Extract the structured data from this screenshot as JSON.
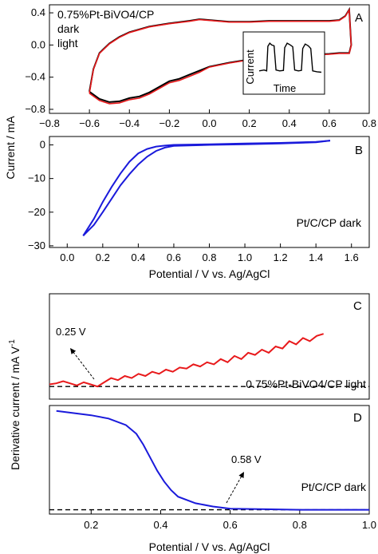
{
  "chart_data": [
    {
      "panel": "A",
      "type": "line",
      "letter": "A",
      "legend_title": "0.75%Pt-BiVO4/CP",
      "series": [
        {
          "name": "dark",
          "color": "#000000"
        },
        {
          "name": "light",
          "color": "#e8191b"
        }
      ],
      "x_ticks": [
        "−0.8",
        "−0.6",
        "−0.4",
        "−0.2",
        "0.0",
        "0.2",
        "0.4",
        "0.6",
        "0.8"
      ],
      "y_ticks": [
        "0.4",
        "0.0",
        "−0.4",
        "−0.8"
      ],
      "xlim": [
        -0.8,
        0.8
      ],
      "ylim": [
        -0.85,
        0.5
      ],
      "cv_upper": [
        [
          -0.6,
          -0.58
        ],
        [
          -0.58,
          -0.3
        ],
        [
          -0.55,
          -0.1
        ],
        [
          -0.5,
          0.02
        ],
        [
          -0.45,
          0.1
        ],
        [
          -0.4,
          0.16
        ],
        [
          -0.3,
          0.23
        ],
        [
          -0.2,
          0.27
        ],
        [
          -0.1,
          0.3
        ],
        [
          -0.05,
          0.32
        ],
        [
          0.0,
          0.31
        ],
        [
          0.1,
          0.29
        ],
        [
          0.2,
          0.29
        ],
        [
          0.3,
          0.3
        ],
        [
          0.4,
          0.3
        ],
        [
          0.5,
          0.3
        ],
        [
          0.6,
          0.3
        ],
        [
          0.65,
          0.31
        ],
        [
          0.68,
          0.36
        ],
        [
          0.7,
          0.44
        ]
      ],
      "cv_lower": [
        [
          0.7,
          0.44
        ],
        [
          0.71,
          0.0
        ],
        [
          0.7,
          -0.1
        ],
        [
          0.65,
          -0.1
        ],
        [
          0.6,
          -0.11
        ],
        [
          0.5,
          -0.12
        ],
        [
          0.4,
          -0.14
        ],
        [
          0.3,
          -0.16
        ],
        [
          0.2,
          -0.18
        ],
        [
          0.1,
          -0.22
        ],
        [
          0.0,
          -0.27
        ],
        [
          -0.05,
          -0.32
        ],
        [
          -0.1,
          -0.37
        ],
        [
          -0.15,
          -0.42
        ],
        [
          -0.2,
          -0.45
        ],
        [
          -0.25,
          -0.52
        ],
        [
          -0.3,
          -0.59
        ],
        [
          -0.35,
          -0.64
        ],
        [
          -0.4,
          -0.66
        ],
        [
          -0.45,
          -0.7
        ],
        [
          -0.5,
          -0.71
        ],
        [
          -0.55,
          -0.67
        ],
        [
          -0.6,
          -0.58
        ]
      ],
      "inset": {
        "xlabel": "Time",
        "ylabel": "Current",
        "trace": [
          [
            0,
            0.2
          ],
          [
            0.08,
            0.22
          ],
          [
            0.12,
            0.2
          ],
          [
            0.14,
            0.75
          ],
          [
            0.17,
            0.82
          ],
          [
            0.2,
            0.78
          ],
          [
            0.24,
            0.76
          ],
          [
            0.27,
            0.22
          ],
          [
            0.33,
            0.2
          ],
          [
            0.39,
            0.21
          ],
          [
            0.41,
            0.72
          ],
          [
            0.45,
            0.82
          ],
          [
            0.5,
            0.78
          ],
          [
            0.54,
            0.74
          ],
          [
            0.57,
            0.22
          ],
          [
            0.63,
            0.2
          ],
          [
            0.68,
            0.21
          ],
          [
            0.7,
            0.7
          ],
          [
            0.74,
            0.8
          ],
          [
            0.79,
            0.76
          ],
          [
            0.83,
            0.7
          ],
          [
            0.86,
            0.2
          ],
          [
            0.93,
            0.18
          ],
          [
            1.0,
            0.17
          ]
        ]
      }
    },
    {
      "panel": "B",
      "type": "line",
      "letter": "B",
      "series": [
        {
          "name": "Pt/C/CP dark",
          "color": "#1a1adb"
        }
      ],
      "x_ticks": [
        "0.0",
        "0.2",
        "0.4",
        "0.6",
        "0.8",
        "1.0",
        "1.2",
        "1.4",
        "1.6"
      ],
      "y_ticks": [
        "0",
        "−10",
        "−20",
        "−30"
      ],
      "xlabel": "Potential / V vs. Ag/AgCl",
      "xlim": [
        -0.1,
        1.7
      ],
      "ylim": [
        -30.5,
        2.5
      ],
      "scan_forward": [
        [
          0.09,
          -27
        ],
        [
          0.15,
          -22
        ],
        [
          0.2,
          -17
        ],
        [
          0.25,
          -12.5
        ],
        [
          0.3,
          -8.5
        ],
        [
          0.35,
          -5
        ],
        [
          0.4,
          -2.5
        ],
        [
          0.45,
          -1.2
        ],
        [
          0.5,
          -0.5
        ],
        [
          0.55,
          -0.2
        ],
        [
          0.6,
          0
        ],
        [
          0.8,
          0.2
        ],
        [
          1.0,
          0.4
        ],
        [
          1.2,
          0.6
        ],
        [
          1.4,
          0.9
        ],
        [
          1.48,
          1.3
        ]
      ],
      "scan_backward": [
        [
          1.48,
          1.3
        ],
        [
          1.4,
          0.8
        ],
        [
          1.2,
          0.4
        ],
        [
          1.0,
          0.2
        ],
        [
          0.8,
          0
        ],
        [
          0.6,
          -0.3
        ],
        [
          0.55,
          -0.8
        ],
        [
          0.5,
          -1.8
        ],
        [
          0.45,
          -3.5
        ],
        [
          0.4,
          -5.8
        ],
        [
          0.35,
          -8.7
        ],
        [
          0.3,
          -12
        ],
        [
          0.25,
          -16
        ],
        [
          0.2,
          -20
        ],
        [
          0.15,
          -23.8
        ],
        [
          0.09,
          -27
        ]
      ]
    },
    {
      "panel": "C",
      "type": "line",
      "letter": "C",
      "series": [
        {
          "name": "0.75%Pt-BiVO4/CP light",
          "color": "#e8191b"
        }
      ],
      "annotation": "0.25 V",
      "xlim": [
        -0.6,
        0.8
      ],
      "ylim": [
        0,
        1
      ],
      "baseline": 0.12,
      "trace": [
        [
          -0.6,
          0.14
        ],
        [
          -0.57,
          0.15
        ],
        [
          -0.54,
          0.17
        ],
        [
          -0.51,
          0.15
        ],
        [
          -0.48,
          0.13
        ],
        [
          -0.45,
          0.16
        ],
        [
          -0.42,
          0.14
        ],
        [
          -0.39,
          0.12
        ],
        [
          -0.36,
          0.16
        ],
        [
          -0.33,
          0.2
        ],
        [
          -0.3,
          0.18
        ],
        [
          -0.27,
          0.22
        ],
        [
          -0.24,
          0.2
        ],
        [
          -0.21,
          0.24
        ],
        [
          -0.18,
          0.22
        ],
        [
          -0.15,
          0.26
        ],
        [
          -0.12,
          0.24
        ],
        [
          -0.09,
          0.28
        ],
        [
          -0.06,
          0.26
        ],
        [
          -0.03,
          0.3
        ],
        [
          0.0,
          0.29
        ],
        [
          0.03,
          0.33
        ],
        [
          0.06,
          0.31
        ],
        [
          0.09,
          0.35
        ],
        [
          0.12,
          0.33
        ],
        [
          0.15,
          0.38
        ],
        [
          0.18,
          0.35
        ],
        [
          0.21,
          0.41
        ],
        [
          0.24,
          0.38
        ],
        [
          0.27,
          0.44
        ],
        [
          0.3,
          0.42
        ],
        [
          0.33,
          0.47
        ],
        [
          0.36,
          0.44
        ],
        [
          0.39,
          0.5
        ],
        [
          0.42,
          0.48
        ],
        [
          0.45,
          0.55
        ],
        [
          0.48,
          0.52
        ],
        [
          0.51,
          0.58
        ],
        [
          0.54,
          0.55
        ],
        [
          0.57,
          0.6
        ],
        [
          0.6,
          0.62
        ]
      ]
    },
    {
      "panel": "D",
      "type": "line",
      "letter": "D",
      "series": [
        {
          "name": "Pt/C/CP dark",
          "color": "#1a1adb"
        }
      ],
      "annotation": "0.58 V",
      "x_ticks": [
        "0.2",
        "0.4",
        "0.6",
        "0.8",
        "1.0"
      ],
      "xlabel": "Potential / V vs. Ag/AgCl",
      "xlim": [
        0.08,
        1.0
      ],
      "ylim": [
        0,
        1
      ],
      "baseline": 0.04,
      "trace": [
        [
          0.1,
          0.95
        ],
        [
          0.15,
          0.93
        ],
        [
          0.2,
          0.91
        ],
        [
          0.25,
          0.88
        ],
        [
          0.3,
          0.82
        ],
        [
          0.33,
          0.74
        ],
        [
          0.35,
          0.64
        ],
        [
          0.37,
          0.52
        ],
        [
          0.39,
          0.4
        ],
        [
          0.41,
          0.3
        ],
        [
          0.43,
          0.22
        ],
        [
          0.45,
          0.16
        ],
        [
          0.5,
          0.1
        ],
        [
          0.55,
          0.07
        ],
        [
          0.6,
          0.05
        ],
        [
          0.7,
          0.045
        ],
        [
          0.8,
          0.04
        ],
        [
          1.0,
          0.04
        ]
      ]
    }
  ],
  "shared_ylabel_top": "Current / mA",
  "shared_ylabel_bottom": "Derivative current / mA V",
  "shared_ylabel_bottom_sup": "-1"
}
